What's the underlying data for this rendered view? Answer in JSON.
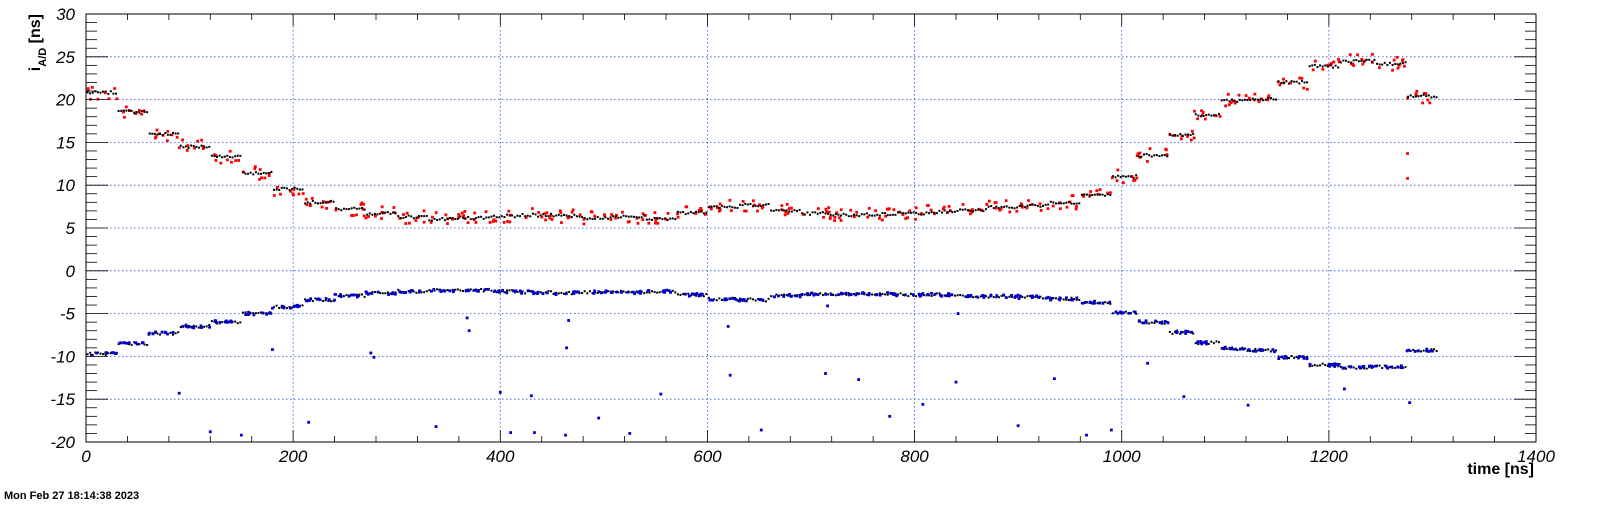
{
  "timestamp": "Mon Feb 27 18:14:38 2023",
  "chart_data": {
    "type": "scatter",
    "title": "",
    "xlabel": "time [ns]",
    "ylabel_main": "i",
    "ylabel_sub": "A/D",
    "ylabel_unit": " [ns]",
    "xlim": [
      0,
      1400
    ],
    "ylim": [
      -20,
      30
    ],
    "x_ticks": [
      0,
      200,
      400,
      600,
      800,
      1000,
      1200,
      1400
    ],
    "y_ticks": [
      -20,
      -15,
      -10,
      -5,
      0,
      5,
      10,
      15,
      20,
      25,
      30
    ],
    "grid": true,
    "grid_style": "dotted",
    "colors": {
      "red": "#ff0000",
      "black": "#000000",
      "blue": "#0000cc",
      "grid": "#2a4dd8",
      "frame": "#000000"
    },
    "series": [
      {
        "color": "red",
        "segments": [
          [
            0,
            30,
            20.8
          ],
          [
            30,
            60,
            18.6
          ],
          [
            60,
            90,
            16.0
          ],
          [
            90,
            120,
            14.5
          ],
          [
            120,
            150,
            13.3
          ],
          [
            150,
            180,
            11.4
          ],
          [
            180,
            210,
            9.6
          ],
          [
            210,
            240,
            8.0
          ],
          [
            240,
            270,
            7.2
          ],
          [
            270,
            300,
            6.7
          ],
          [
            300,
            330,
            6.3
          ],
          [
            330,
            360,
            6.0
          ],
          [
            360,
            390,
            6.2
          ],
          [
            390,
            420,
            6.4
          ],
          [
            420,
            450,
            6.5
          ],
          [
            450,
            480,
            6.4
          ],
          [
            480,
            510,
            6.2
          ],
          [
            510,
            540,
            6.3
          ],
          [
            540,
            570,
            6.1
          ],
          [
            570,
            600,
            6.8
          ],
          [
            600,
            630,
            7.5
          ],
          [
            630,
            660,
            7.7
          ],
          [
            660,
            690,
            7.1
          ],
          [
            690,
            720,
            6.7
          ],
          [
            720,
            750,
            6.5
          ],
          [
            750,
            780,
            6.6
          ],
          [
            780,
            810,
            6.7
          ],
          [
            810,
            840,
            6.9
          ],
          [
            840,
            870,
            7.1
          ],
          [
            870,
            900,
            7.4
          ],
          [
            900,
            930,
            7.6
          ],
          [
            930,
            960,
            8.0
          ],
          [
            960,
            990,
            8.8
          ],
          [
            990,
            1015,
            11.0
          ],
          [
            1015,
            1045,
            13.5
          ],
          [
            1045,
            1070,
            15.9
          ],
          [
            1070,
            1095,
            18.2
          ],
          [
            1095,
            1120,
            19.9
          ],
          [
            1120,
            1150,
            20.1
          ],
          [
            1150,
            1180,
            22.0
          ],
          [
            1180,
            1210,
            23.9
          ],
          [
            1210,
            1245,
            24.5
          ],
          [
            1245,
            1275,
            24.2
          ],
          [
            1275,
            1305,
            20.4
          ]
        ],
        "outliers": [
          [
            1276,
            13.7
          ],
          [
            1276,
            10.8
          ]
        ]
      },
      {
        "color": "blue",
        "segments": [
          [
            0,
            30,
            -9.7
          ],
          [
            30,
            60,
            -8.5
          ],
          [
            60,
            90,
            -7.3
          ],
          [
            90,
            120,
            -6.5
          ],
          [
            120,
            150,
            -6.0
          ],
          [
            150,
            180,
            -5.0
          ],
          [
            180,
            210,
            -4.2
          ],
          [
            210,
            240,
            -3.4
          ],
          [
            240,
            270,
            -2.9
          ],
          [
            270,
            300,
            -2.6
          ],
          [
            300,
            330,
            -2.4
          ],
          [
            330,
            360,
            -2.3
          ],
          [
            360,
            390,
            -2.3
          ],
          [
            390,
            420,
            -2.4
          ],
          [
            420,
            450,
            -2.5
          ],
          [
            450,
            480,
            -2.6
          ],
          [
            480,
            510,
            -2.5
          ],
          [
            510,
            540,
            -2.5
          ],
          [
            540,
            570,
            -2.4
          ],
          [
            570,
            600,
            -2.8
          ],
          [
            600,
            630,
            -3.3
          ],
          [
            630,
            660,
            -3.4
          ],
          [
            660,
            690,
            -2.9
          ],
          [
            690,
            720,
            -2.7
          ],
          [
            720,
            750,
            -2.7
          ],
          [
            750,
            780,
            -2.7
          ],
          [
            780,
            810,
            -2.8
          ],
          [
            810,
            840,
            -2.8
          ],
          [
            840,
            870,
            -3.0
          ],
          [
            870,
            900,
            -3.0
          ],
          [
            900,
            930,
            -3.1
          ],
          [
            930,
            960,
            -3.3
          ],
          [
            960,
            990,
            -3.7
          ],
          [
            990,
            1015,
            -4.9
          ],
          [
            1015,
            1045,
            -6.0
          ],
          [
            1045,
            1070,
            -7.2
          ],
          [
            1070,
            1095,
            -8.4
          ],
          [
            1095,
            1120,
            -9.1
          ],
          [
            1120,
            1150,
            -9.3
          ],
          [
            1150,
            1180,
            -10.1
          ],
          [
            1180,
            1210,
            -11.0
          ],
          [
            1210,
            1245,
            -11.3
          ],
          [
            1245,
            1275,
            -11.2
          ],
          [
            1275,
            1305,
            -9.3
          ]
        ],
        "outliers": [
          [
            90,
            -14.3
          ],
          [
            120,
            -18.8
          ],
          [
            150,
            -19.2
          ],
          [
            180,
            -9.2
          ],
          [
            215,
            -17.7
          ],
          [
            275,
            -9.6
          ],
          [
            278,
            -10.1
          ],
          [
            338,
            -18.2
          ],
          [
            368,
            -5.5
          ],
          [
            370,
            -7.0
          ],
          [
            400,
            -14.2
          ],
          [
            410,
            -18.9
          ],
          [
            430,
            -14.6
          ],
          [
            433,
            -18.9
          ],
          [
            463,
            -19.2
          ],
          [
            464,
            -9.0
          ],
          [
            466,
            -5.8
          ],
          [
            495,
            -17.2
          ],
          [
            525,
            -19.0
          ],
          [
            555,
            -14.4
          ],
          [
            620,
            -6.5
          ],
          [
            622,
            -12.2
          ],
          [
            652,
            -18.6
          ],
          [
            714,
            -12.0
          ],
          [
            716,
            -4.1
          ],
          [
            746,
            -12.7
          ],
          [
            776,
            -17.0
          ],
          [
            808,
            -15.6
          ],
          [
            840,
            -13.0
          ],
          [
            842,
            -5.0
          ],
          [
            900,
            -18.1
          ],
          [
            935,
            -12.6
          ],
          [
            966,
            -19.2
          ],
          [
            990,
            -18.6
          ],
          [
            1025,
            -10.8
          ],
          [
            1060,
            -14.7
          ],
          [
            1122,
            -15.7
          ],
          [
            1158,
            -10.0
          ],
          [
            1215,
            -13.8
          ],
          [
            1278,
            -15.4
          ]
        ]
      }
    ]
  }
}
